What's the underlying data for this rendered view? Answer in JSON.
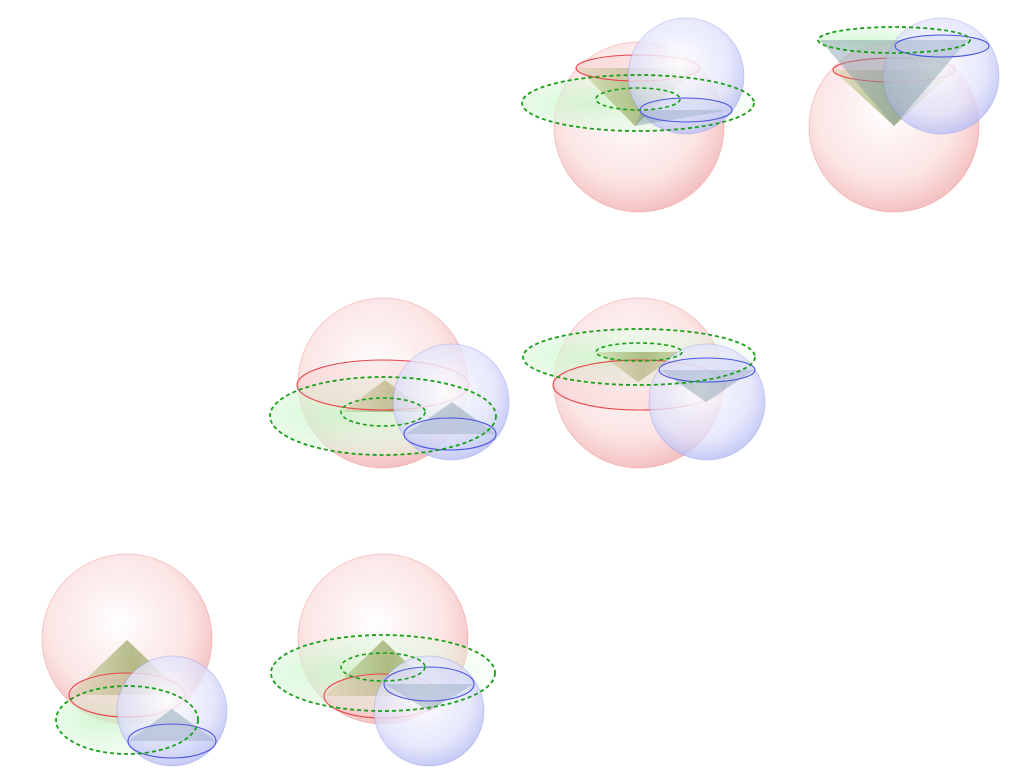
{
  "figure": {
    "kind": "grid of 3D cone-sphere configurations",
    "grid": {
      "rows": 3,
      "cols": 4
    },
    "colors": {
      "red": "#e8474a",
      "blue": "#4a54e0",
      "green": "#1aa01a",
      "red_fill": "#f7c9c9",
      "blue_fill": "#c9cdf5",
      "green_fill": "#b8f0b8",
      "cone_fill": "#8a9a4a"
    },
    "panels": [
      {
        "row": 0,
        "col": 2,
        "variant": "apex-down-blue-right"
      },
      {
        "row": 0,
        "col": 3,
        "variant": "apex-down-blue-top"
      },
      {
        "row": 1,
        "col": 1,
        "variant": "equator-blue-lower-right"
      },
      {
        "row": 1,
        "col": 2,
        "variant": "equator-blue-right"
      },
      {
        "row": 2,
        "col": 0,
        "variant": "apex-up-blue-low"
      },
      {
        "row": 2,
        "col": 1,
        "variant": "apex-up-blue-mid"
      }
    ]
  }
}
